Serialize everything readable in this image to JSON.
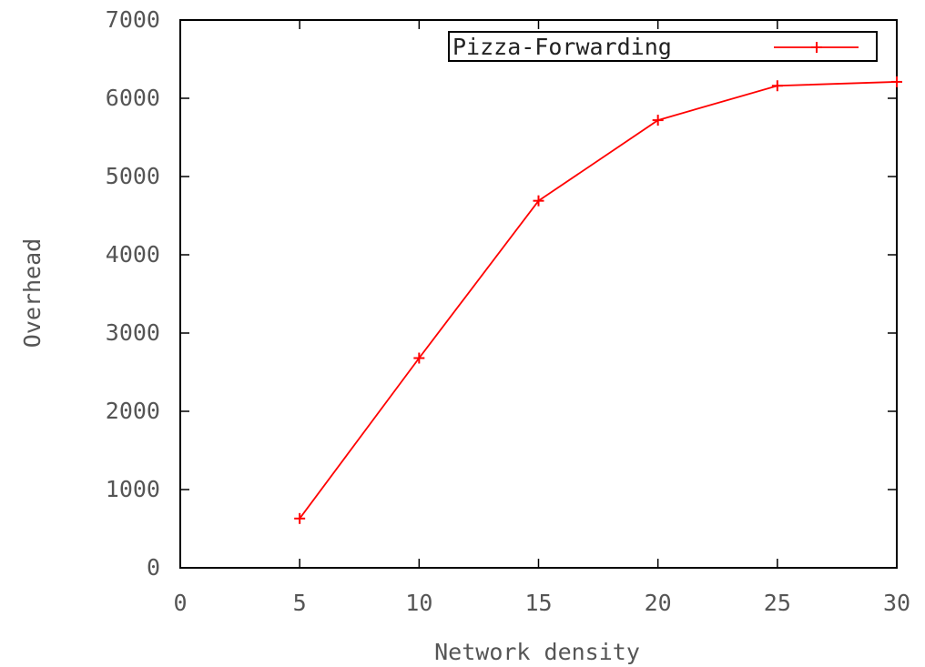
{
  "chart_data": {
    "type": "line",
    "title": "",
    "xlabel": "Network density",
    "ylabel": "Overhead",
    "xlim": [
      0,
      30
    ],
    "ylim": [
      0,
      7000
    ],
    "xticks": [
      0,
      5,
      10,
      15,
      20,
      25,
      30
    ],
    "yticks": [
      0,
      1000,
      2000,
      3000,
      4000,
      5000,
      6000,
      7000
    ],
    "grid": false,
    "legend_position": "top-right",
    "series": [
      {
        "name": "Pizza-Forwarding",
        "color": "#ff0000",
        "marker": "plus",
        "x": [
          5,
          10,
          15,
          20,
          25,
          30
        ],
        "y": [
          630,
          2680,
          4690,
          5720,
          6160,
          6210
        ]
      }
    ]
  }
}
